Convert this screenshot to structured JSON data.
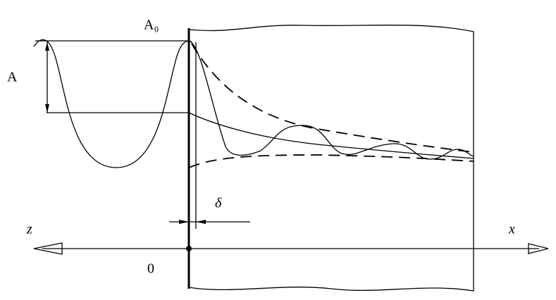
{
  "labels": {
    "a0": "A₀",
    "a": "A",
    "delta": "δ",
    "z": "z",
    "x": "x",
    "origin": "0"
  }
}
